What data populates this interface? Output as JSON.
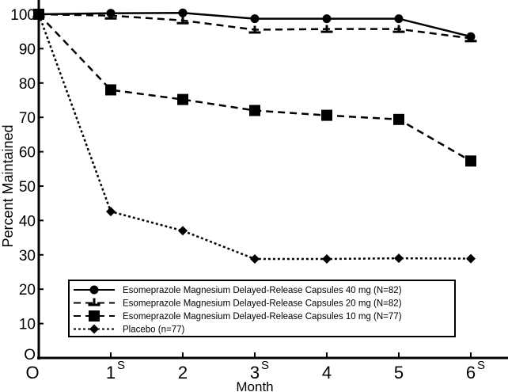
{
  "chart_data": {
    "type": "line",
    "title": "",
    "xlabel": "Month",
    "ylabel": "Percent Maintained",
    "x": [
      0,
      1,
      2,
      3,
      4,
      5,
      6
    ],
    "xlim": [
      0,
      6.5
    ],
    "ylim": [
      0,
      100
    ],
    "x_tick_labels": [
      "O",
      "1",
      "2",
      "3",
      "4",
      "5",
      "6"
    ],
    "y_ticks": [
      0,
      10,
      20,
      30,
      40,
      50,
      60,
      70,
      80,
      90,
      100
    ],
    "y_tick_labels": [
      "O",
      "10",
      "20",
      "30",
      "40",
      "50",
      "60",
      "70",
      "80",
      "90",
      "100"
    ],
    "significance_marks": [
      {
        "x": 1,
        "label": "S"
      },
      {
        "x": 3,
        "label": "S"
      },
      {
        "x": 6,
        "label": "S"
      }
    ],
    "grid": false,
    "legend_position": "bottom-center",
    "series": [
      {
        "name": "Esomeprazole Magnesium Delayed-Release Capsules 40 mg (N=82)",
        "style": "solid",
        "marker": "circle",
        "values": [
          100,
          100.3,
          100.4,
          98.7,
          98.7,
          98.7,
          93.5
        ]
      },
      {
        "name": "Esomeprazole Magnesium Delayed-Release Capsules 20 mg (N=82)",
        "style": "dashed",
        "marker": "tee",
        "values": [
          100,
          99.6,
          98.2,
          95.5,
          95.7,
          95.7,
          93.0
        ]
      },
      {
        "name": "Esomeprazole Magnesium Delayed-Release Capsules 10 mg (N=77)",
        "style": "dashed",
        "marker": "square",
        "values": [
          100,
          78.0,
          75.2,
          72.0,
          70.6,
          69.4,
          57.3
        ]
      },
      {
        "name": "Placebo (n=77)",
        "style": "dotted",
        "marker": "diamond",
        "values": [
          100,
          42.6,
          37.0,
          28.8,
          28.8,
          29.0,
          28.9
        ]
      }
    ]
  }
}
